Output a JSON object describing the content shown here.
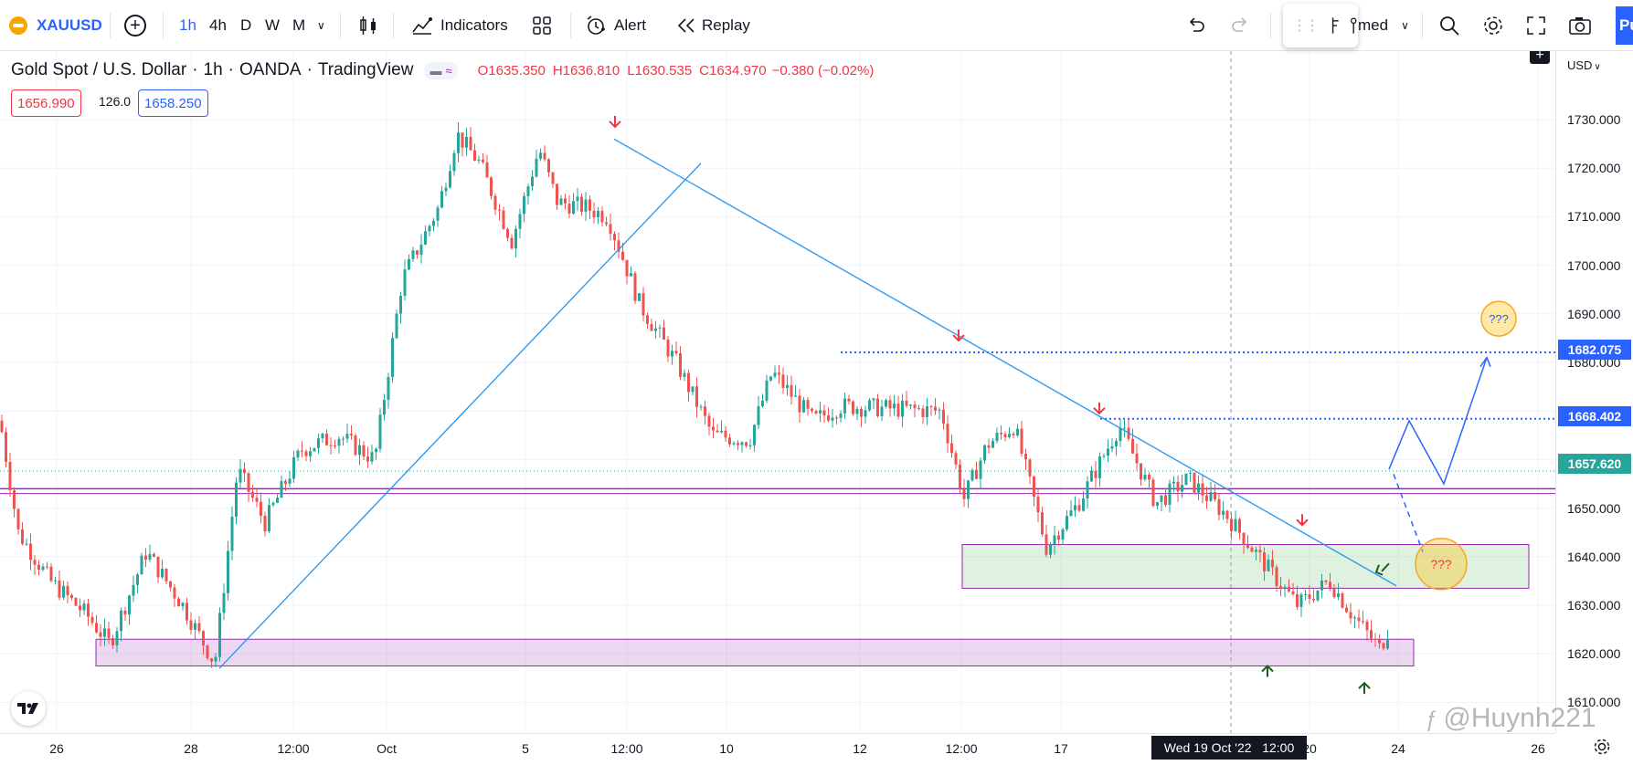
{
  "toolbar": {
    "symbol": "XAUUSD",
    "intervals": [
      "1h",
      "4h",
      "D",
      "W",
      "M"
    ],
    "indicators_label": "Indicators",
    "alert_label": "Alert",
    "replay_label": "Replay",
    "layout_partial": "med",
    "publish_partial": "Pu"
  },
  "legend": {
    "title": "Gold Spot / U.S. Dollar",
    "interval": "1h",
    "source": "OANDA",
    "platform": "TradingView",
    "open": "O1635.350",
    "high": "H1636.810",
    "low": "L1630.535",
    "close": "C1634.970",
    "change": "−0.380 (−0.02%)",
    "sell_price": "1656.990",
    "spread": "126.0",
    "buy_price": "1658.250"
  },
  "price_axis": {
    "currency": "USD",
    "labels": [
      "1730.000",
      "1720.000",
      "1710.000",
      "1700.000",
      "1690.000",
      "1680.000",
      "1670.000",
      "1660.000",
      "1650.000",
      "1640.000",
      "1630.000",
      "1620.000",
      "1610.000"
    ],
    "tags": {
      "level_high": "1682.075",
      "level_mid": "1668.402",
      "current": "1657.620"
    }
  },
  "time_axis": {
    "labels": [
      "26",
      "28",
      "12:00",
      "Oct",
      "5",
      "12:00",
      "10",
      "12",
      "12:00",
      "17",
      "20",
      "24",
      "26"
    ],
    "crosshair_label": "Wed 19 Oct '22   12:00"
  },
  "annotations": {
    "question_top": "???",
    "question_bottom": "???"
  },
  "watermark": "@Huynh221",
  "colors": {
    "up": "#26a69a",
    "down": "#ef5350",
    "trendline": "#2196f3",
    "zone_purple": "#9c27b0",
    "zone_green": "#4caf50",
    "accent": "#2962ff"
  },
  "chart_data": {
    "type": "candlestick",
    "symbol": "XAUUSD",
    "interval": "1h",
    "ylim": [
      1605,
      1735
    ],
    "levels": [
      1682.075,
      1668.402,
      1657.62
    ],
    "zones": [
      [
        1617.5,
        1623
      ],
      [
        1633.5,
        1642.5
      ]
    ],
    "close_path": [
      [
        0,
        1668
      ],
      [
        20,
        1645
      ],
      [
        55,
        1635
      ],
      [
        95,
        1628
      ],
      [
        120,
        1622
      ],
      [
        160,
        1641
      ],
      [
        200,
        1630
      ],
      [
        235,
        1618
      ],
      [
        260,
        1658
      ],
      [
        290,
        1647
      ],
      [
        330,
        1662
      ],
      [
        370,
        1665
      ],
      [
        410,
        1660
      ],
      [
        440,
        1697
      ],
      [
        480,
        1712
      ],
      [
        500,
        1727
      ],
      [
        525,
        1721
      ],
      [
        560,
        1705
      ],
      [
        590,
        1724
      ],
      [
        610,
        1713
      ],
      [
        640,
        1712
      ],
      [
        665,
        1710
      ],
      [
        700,
        1692
      ],
      [
        740,
        1680
      ],
      [
        780,
        1665
      ],
      [
        820,
        1664
      ],
      [
        845,
        1678
      ],
      [
        890,
        1668
      ],
      [
        920,
        1671
      ],
      [
        1030,
        1670
      ],
      [
        1055,
        1652
      ],
      [
        1080,
        1663
      ],
      [
        1110,
        1667
      ],
      [
        1145,
        1642
      ],
      [
        1180,
        1651
      ],
      [
        1225,
        1667
      ],
      [
        1265,
        1651
      ],
      [
        1300,
        1656
      ],
      [
        1340,
        1649
      ],
      [
        1390,
        1637
      ],
      [
        1420,
        1630
      ],
      [
        1455,
        1635
      ],
      [
        1480,
        1628
      ],
      [
        1510,
        1621
      ],
      [
        1530,
        1630
      ],
      [
        1560,
        1636
      ],
      [
        1595,
        1635
      ],
      [
        1615,
        1628
      ],
      [
        1650,
        1622
      ],
      [
        1690,
        1618
      ],
      [
        1705,
        1643
      ],
      [
        1720,
        1652
      ],
      [
        1735,
        1657
      ]
    ]
  }
}
